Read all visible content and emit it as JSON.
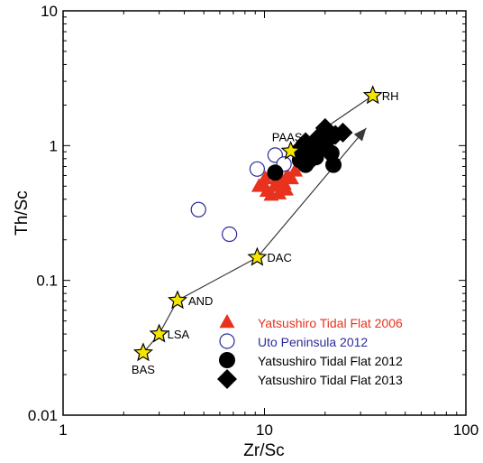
{
  "chart_data": {
    "type": "scatter",
    "xscale": "log",
    "yscale": "log",
    "xlim": [
      1,
      100
    ],
    "ylim": [
      0.01,
      10
    ],
    "xlabel": "Zr/Sc",
    "ylabel": "Th/Sc",
    "xticks": [
      "1",
      "10",
      "100"
    ],
    "yticks": [
      "0.01",
      "0.1",
      "1",
      "10"
    ],
    "grid": false,
    "legend": "bottom-right",
    "colors": {
      "red": "#e8321e",
      "blue": "#2b2b9c",
      "black": "#000000",
      "star_fill": "#f5e400",
      "line": "#3a3a3a"
    },
    "reference_points": [
      {
        "label": "BAS",
        "x": 2.5,
        "y": 0.029
      },
      {
        "label": "LSA",
        "x": 3.0,
        "y": 0.04
      },
      {
        "label": "AND",
        "x": 3.7,
        "y": 0.071
      },
      {
        "label": "DAC",
        "x": 9.2,
        "y": 0.148
      },
      {
        "label": "PAAS",
        "x": 13.5,
        "y": 0.91
      },
      {
        "label": "RH",
        "x": 34.5,
        "y": 2.35
      }
    ],
    "trend_arrow": {
      "from": [
        9.2,
        0.148
      ],
      "to": [
        32,
        1.35
      ]
    },
    "series": [
      {
        "name": "Yatsushiro Tidal Flat 2006",
        "marker": "triangle",
        "color": "#e8321e",
        "points": [
          [
            9.4,
            0.5
          ],
          [
            9.8,
            0.53
          ],
          [
            10.3,
            0.46
          ],
          [
            10.8,
            0.43
          ],
          [
            11.2,
            0.5
          ],
          [
            11.6,
            0.58
          ],
          [
            12.0,
            0.55
          ],
          [
            12.5,
            0.52
          ],
          [
            13.0,
            0.6
          ],
          [
            11.0,
            0.62
          ],
          [
            10.1,
            0.57
          ],
          [
            12.8,
            0.47
          ],
          [
            13.6,
            0.57
          ],
          [
            14.2,
            0.65
          ],
          [
            11.8,
            0.44
          ]
        ]
      },
      {
        "name": "Uto Peninsula 2012",
        "marker": "open-circle",
        "color": "#2b2b9c",
        "points": [
          [
            4.7,
            0.335
          ],
          [
            6.7,
            0.22
          ],
          [
            9.2,
            0.67
          ],
          [
            11.3,
            0.85
          ],
          [
            12.5,
            0.73
          ]
        ]
      },
      {
        "name": "Yatsushiro Tidal Flat 2012",
        "marker": "circle",
        "color": "#000000",
        "points": [
          [
            11.3,
            0.63
          ],
          [
            15.0,
            0.78
          ],
          [
            16.0,
            0.72
          ],
          [
            17.0,
            0.9
          ],
          [
            18.0,
            0.82
          ],
          [
            19.5,
            0.98
          ],
          [
            21.5,
            0.88
          ],
          [
            22.0,
            0.72
          ],
          [
            15.5,
            0.88
          ]
        ]
      },
      {
        "name": "Yatsushiro Tidal Flat 2013",
        "marker": "diamond",
        "color": "#000000",
        "points": [
          [
            14.5,
            0.9
          ],
          [
            15.5,
            0.82
          ],
          [
            16.5,
            1.0
          ],
          [
            17.0,
            0.78
          ],
          [
            18.0,
            1.05
          ],
          [
            19.0,
            0.95
          ],
          [
            20.0,
            1.35
          ],
          [
            21.0,
            1.12
          ],
          [
            22.5,
            1.2
          ],
          [
            24.5,
            1.25
          ],
          [
            16.0,
            1.06
          ],
          [
            18.5,
            1.15
          ]
        ]
      }
    ]
  }
}
